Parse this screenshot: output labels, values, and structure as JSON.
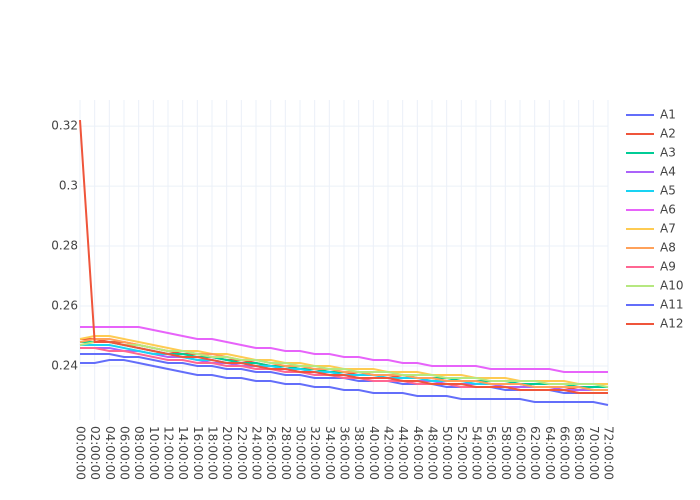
{
  "chart_data": {
    "type": "line",
    "categories": [
      "00:00:00",
      "02:00:00",
      "04:00:00",
      "06:00:00",
      "08:00:00",
      "10:00:00",
      "12:00:00",
      "14:00:00",
      "16:00:00",
      "18:00:00",
      "20:00:00",
      "22:00:00",
      "24:00:00",
      "26:00:00",
      "28:00:00",
      "30:00:00",
      "32:00:00",
      "34:00:00",
      "36:00:00",
      "38:00:00",
      "40:00:00",
      "42:00:00",
      "44:00:00",
      "46:00:00",
      "48:00:00",
      "50:00:00",
      "52:00:00",
      "54:00:00",
      "56:00:00",
      "58:00:00",
      "60:00:00",
      "62:00:00",
      "64:00:00",
      "66:00:00",
      "68:00:00",
      "70:00:00",
      "72:00:00"
    ],
    "ylim": [
      0.222,
      0.3287
    ],
    "yticks": [
      0.24,
      0.26,
      0.28,
      0.3,
      0.32
    ],
    "grid": true,
    "series": [
      {
        "name": "A1",
        "color": "#636efa",
        "values": [
          0.244,
          0.244,
          0.244,
          0.243,
          0.243,
          0.242,
          0.241,
          0.241,
          0.24,
          0.24,
          0.239,
          0.239,
          0.238,
          0.238,
          0.237,
          0.237,
          0.236,
          0.236,
          0.236,
          0.235,
          0.235,
          0.235,
          0.234,
          0.234,
          0.234,
          0.233,
          0.233,
          0.233,
          0.233,
          0.232,
          0.232,
          0.232,
          0.232,
          0.231,
          0.231,
          0.231,
          0.231
        ]
      },
      {
        "name": "A2",
        "color": "#EF553B",
        "values": [
          0.249,
          0.249,
          0.248,
          0.248,
          0.247,
          0.246,
          0.245,
          0.244,
          0.244,
          0.243,
          0.242,
          0.242,
          0.241,
          0.24,
          0.24,
          0.239,
          0.239,
          0.238,
          0.238,
          0.237,
          0.237,
          0.237,
          0.236,
          0.236,
          0.236,
          0.235,
          0.235,
          0.235,
          0.234,
          0.234,
          0.234,
          0.233,
          0.233,
          0.233,
          0.232,
          0.232,
          0.232
        ]
      },
      {
        "name": "A3",
        "color": "#00cc96",
        "values": [
          0.248,
          0.248,
          0.248,
          0.247,
          0.246,
          0.245,
          0.244,
          0.244,
          0.243,
          0.243,
          0.242,
          0.241,
          0.241,
          0.24,
          0.24,
          0.239,
          0.239,
          0.238,
          0.238,
          0.238,
          0.237,
          0.237,
          0.237,
          0.236,
          0.236,
          0.236,
          0.235,
          0.235,
          0.235,
          0.235,
          0.234,
          0.234,
          0.234,
          0.234,
          0.233,
          0.233,
          0.233
        ]
      },
      {
        "name": "A4",
        "color": "#ab63fa",
        "values": [
          0.246,
          0.246,
          0.246,
          0.245,
          0.245,
          0.244,
          0.243,
          0.243,
          0.242,
          0.241,
          0.241,
          0.24,
          0.24,
          0.239,
          0.239,
          0.238,
          0.238,
          0.237,
          0.237,
          0.236,
          0.236,
          0.236,
          0.235,
          0.235,
          0.235,
          0.234,
          0.234,
          0.234,
          0.234,
          0.233,
          0.233,
          0.233,
          0.233,
          0.232,
          0.232,
          0.232,
          0.232
        ]
      },
      {
        "name": "A5",
        "color": "#19d3f3",
        "values": [
          0.247,
          0.247,
          0.247,
          0.246,
          0.245,
          0.244,
          0.244,
          0.243,
          0.242,
          0.242,
          0.241,
          0.241,
          0.24,
          0.24,
          0.239,
          0.239,
          0.238,
          0.238,
          0.237,
          0.237,
          0.237,
          0.236,
          0.236,
          0.236,
          0.235,
          0.235,
          0.235,
          0.234,
          0.234,
          0.234,
          0.234,
          0.233,
          0.233,
          0.233,
          0.233,
          0.232,
          0.232
        ]
      },
      {
        "name": "A6",
        "color": "#e763fa",
        "values": [
          0.253,
          0.253,
          0.253,
          0.253,
          0.253,
          0.252,
          0.251,
          0.25,
          0.249,
          0.249,
          0.248,
          0.247,
          0.246,
          0.246,
          0.245,
          0.245,
          0.244,
          0.244,
          0.243,
          0.243,
          0.242,
          0.242,
          0.241,
          0.241,
          0.24,
          0.24,
          0.24,
          0.24,
          0.239,
          0.239,
          0.239,
          0.239,
          0.239,
          0.238,
          0.238,
          0.238,
          0.238
        ]
      },
      {
        "name": "A7",
        "color": "#FECB52",
        "values": [
          0.249,
          0.25,
          0.25,
          0.249,
          0.248,
          0.247,
          0.246,
          0.245,
          0.245,
          0.244,
          0.244,
          0.243,
          0.242,
          0.242,
          0.241,
          0.241,
          0.24,
          0.24,
          0.239,
          0.239,
          0.239,
          0.238,
          0.238,
          0.238,
          0.237,
          0.237,
          0.237,
          0.236,
          0.236,
          0.236,
          0.235,
          0.235,
          0.235,
          0.235,
          0.234,
          0.234,
          0.234
        ]
      },
      {
        "name": "A8",
        "color": "#FFA15A",
        "values": [
          0.248,
          0.249,
          0.249,
          0.248,
          0.247,
          0.246,
          0.245,
          0.245,
          0.244,
          0.244,
          0.243,
          0.242,
          0.242,
          0.241,
          0.24,
          0.24,
          0.239,
          0.239,
          0.238,
          0.238,
          0.237,
          0.237,
          0.237,
          0.236,
          0.236,
          0.235,
          0.235,
          0.235,
          0.234,
          0.234,
          0.234,
          0.233,
          0.233,
          0.233,
          0.233,
          0.232,
          0.232
        ]
      },
      {
        "name": "A9",
        "color": "#FF6692",
        "values": [
          0.246,
          0.246,
          0.245,
          0.245,
          0.244,
          0.243,
          0.242,
          0.242,
          0.241,
          0.241,
          0.24,
          0.24,
          0.239,
          0.239,
          0.238,
          0.238,
          0.237,
          0.237,
          0.236,
          0.236,
          0.235,
          0.235,
          0.235,
          0.234,
          0.234,
          0.234,
          0.233,
          0.233,
          0.233,
          0.233,
          0.232,
          0.232,
          0.232,
          0.232,
          0.231,
          0.231,
          0.231
        ]
      },
      {
        "name": "A10",
        "color": "#B6E880",
        "values": [
          0.247,
          0.248,
          0.248,
          0.247,
          0.247,
          0.246,
          0.245,
          0.245,
          0.244,
          0.243,
          0.243,
          0.242,
          0.242,
          0.241,
          0.241,
          0.24,
          0.24,
          0.239,
          0.239,
          0.238,
          0.238,
          0.238,
          0.237,
          0.237,
          0.237,
          0.236,
          0.236,
          0.236,
          0.235,
          0.235,
          0.235,
          0.235,
          0.234,
          0.234,
          0.234,
          0.234,
          0.233
        ]
      },
      {
        "name": "A11",
        "color": "#636efa",
        "values": [
          0.241,
          0.241,
          0.242,
          0.242,
          0.241,
          0.24,
          0.239,
          0.238,
          0.237,
          0.237,
          0.236,
          0.236,
          0.235,
          0.235,
          0.234,
          0.234,
          0.233,
          0.233,
          0.232,
          0.232,
          0.231,
          0.231,
          0.231,
          0.23,
          0.23,
          0.23,
          0.229,
          0.229,
          0.229,
          0.229,
          0.229,
          0.228,
          0.228,
          0.228,
          0.228,
          0.228,
          0.227
        ]
      },
      {
        "name": "A12",
        "color": "#EF553B",
        "values": [
          0.322,
          0.248,
          0.248,
          0.247,
          0.246,
          0.245,
          0.244,
          0.243,
          0.243,
          0.242,
          0.241,
          0.241,
          0.24,
          0.239,
          0.239,
          0.238,
          0.238,
          0.237,
          0.237,
          0.236,
          0.236,
          0.236,
          0.235,
          0.235,
          0.234,
          0.234,
          0.234,
          0.233,
          0.233,
          0.233,
          0.232,
          0.232,
          0.232,
          0.232,
          0.231,
          0.231,
          0.231
        ]
      }
    ]
  }
}
